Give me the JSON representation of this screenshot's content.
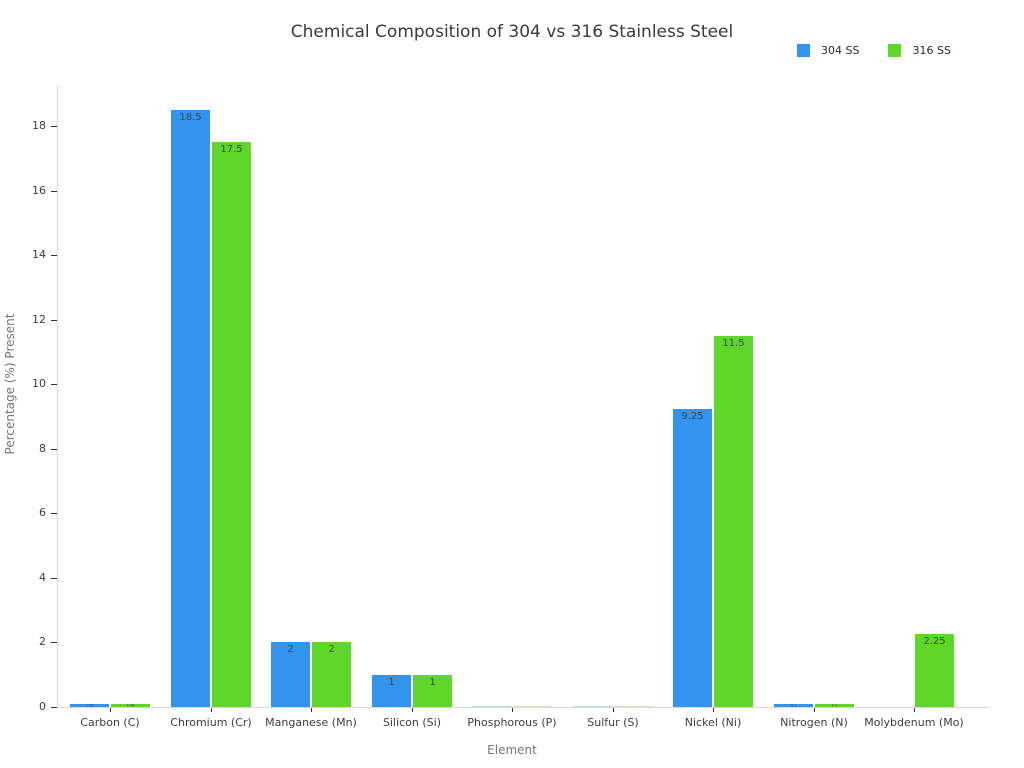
{
  "chart_data": {
    "type": "bar",
    "title": "Chemical Composition of 304 vs 316 Stainless Steel",
    "xlabel": "Element",
    "ylabel": "Percentage (%) Present",
    "categories": [
      "Carbon (C)",
      "Chromium (Cr)",
      "Manganese (Mn)",
      "Silicon (Si)",
      "Phosphorous (P)",
      "Sulfur (S)",
      "Nickel (Ni)",
      "Nitrogen (N)",
      "Molybdenum (Mo)"
    ],
    "series": [
      {
        "name": "304 SS",
        "color": "#3394f0",
        "values": [
          0.08,
          18.5,
          2,
          1,
          0.045,
          0.03,
          9.25,
          0.1,
          0
        ]
      },
      {
        "name": "316 SS",
        "color": "#5fd62a",
        "values": [
          0.08,
          17.5,
          2,
          1,
          0.045,
          0.03,
          11.5,
          0.1,
          2.25
        ]
      }
    ],
    "visible_bar_labels": [
      "18.5",
      "17.5",
      "2",
      "2",
      "1",
      "1",
      "9.25",
      "11.5",
      "2.25"
    ],
    "yticks": [
      0,
      2,
      4,
      6,
      8,
      10,
      12,
      14,
      16,
      18
    ],
    "ylim": [
      0,
      18.6
    ],
    "grid": "off",
    "legend_position": "top-right",
    "background_color": "#ffffff"
  }
}
